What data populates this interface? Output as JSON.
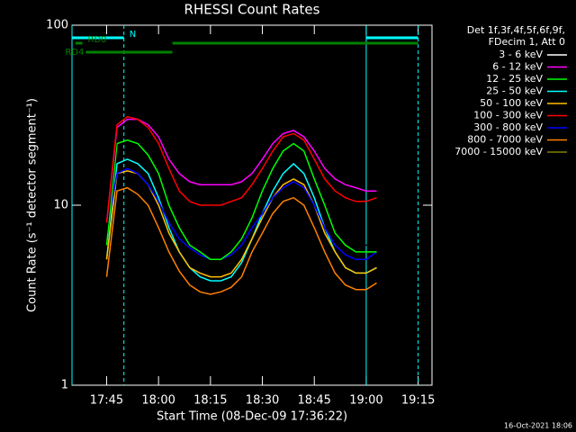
{
  "chart_data": {
    "type": "line",
    "title": "RHESSI Count Rates",
    "y_label": "Count Rate (s⁻¹ detector segment⁻¹)",
    "x_label": "Start Time (08-Dec-09 17:36:22)",
    "legend_header": [
      "Det 1f,3f,4f,5f,6f,9f,",
      "FDecim 1, Att 0"
    ],
    "footer": "16-Oct-2021 18:06",
    "log_y": true,
    "legend": "outside-right",
    "xlim": [
      "17:35",
      "19:19"
    ],
    "xticks": [
      "17:45",
      "18:00",
      "18:15",
      "18:30",
      "18:45",
      "19:00",
      "19:15"
    ],
    "ylim": [
      1,
      100
    ],
    "yticks": [
      1,
      10,
      100
    ],
    "x": [
      "17:45",
      "17:48",
      "17:51",
      "17:54",
      "17:57",
      "18:00",
      "18:03",
      "18:06",
      "18:09",
      "18:12",
      "18:15",
      "18:18",
      "18:21",
      "18:24",
      "18:27",
      "18:30",
      "18:33",
      "18:36",
      "18:39",
      "18:42",
      "18:45",
      "18:48",
      "18:51",
      "18:54",
      "18:57",
      "19:00",
      "19:03"
    ],
    "series": [
      {
        "name": "3 - 6 keV",
        "color": "#000000",
        "values": [
          7,
          25,
          26,
          25,
          21,
          17,
          12,
          9,
          7,
          6,
          5.5,
          5.5,
          6,
          7,
          9,
          13,
          18,
          22,
          23,
          21,
          16,
          11,
          8,
          6.5,
          6,
          6,
          6
        ]
      },
      {
        "name": "6 - 12 keV",
        "color": "#ff00ff",
        "values": [
          8,
          27,
          30,
          30,
          28,
          24,
          18,
          15,
          13.5,
          13,
          13,
          13,
          13,
          13.5,
          15,
          18,
          22,
          25,
          26,
          24,
          20,
          16,
          14,
          13,
          12.5,
          12,
          12
        ]
      },
      {
        "name": "12 - 25 keV",
        "color": "#00ff00",
        "values": [
          6,
          22,
          23,
          22,
          19,
          15,
          10,
          7.5,
          6,
          5.5,
          5,
          5,
          5.5,
          6.5,
          8.5,
          12,
          16,
          20,
          22,
          20,
          14,
          10,
          7,
          6,
          5.5,
          5.5,
          5.5
        ]
      },
      {
        "name": "25 - 50 keV",
        "color": "#00ffff",
        "values": [
          5,
          17,
          18,
          17,
          15,
          11,
          7.5,
          5.5,
          4.5,
          4,
          3.8,
          3.8,
          4,
          4.8,
          6.5,
          9,
          12,
          15,
          17,
          15,
          11,
          7.5,
          5.5,
          4.5,
          4.2,
          4.2,
          4.5
        ]
      },
      {
        "name": "50 - 100 keV",
        "color": "#ffc000",
        "values": [
          5,
          15,
          15.5,
          15,
          13,
          10,
          7,
          5.5,
          4.5,
          4.2,
          4,
          4,
          4.2,
          5,
          6.5,
          8.5,
          11,
          13,
          14,
          13,
          10,
          7,
          5.5,
          4.5,
          4.2,
          4.2,
          4.5
        ]
      },
      {
        "name": "100 - 300 keV",
        "color": "#ff0000",
        "values": [
          8,
          28,
          31,
          30,
          27,
          22,
          16,
          12,
          10.5,
          10,
          10,
          10,
          10.5,
          11,
          13,
          16,
          20,
          24,
          25,
          23,
          18,
          14,
          12,
          11,
          10.5,
          10.5,
          11
        ]
      },
      {
        "name": "300 - 800 keV",
        "color": "#0000ff",
        "values": [
          7,
          15,
          16,
          15,
          13,
          10.5,
          8,
          6.5,
          5.8,
          5.3,
          5,
          5,
          5.3,
          6,
          7.5,
          9,
          11,
          12.5,
          13.5,
          12.5,
          10,
          7.5,
          6,
          5.3,
          5,
          5,
          5.5
        ]
      },
      {
        "name": "800 - 7000 keV",
        "color": "#ff8000",
        "values": [
          4,
          12,
          12.5,
          11.5,
          10,
          7.5,
          5.5,
          4.3,
          3.6,
          3.3,
          3.2,
          3.3,
          3.5,
          4,
          5.5,
          7,
          9,
          10.5,
          11,
          10,
          7.5,
          5.5,
          4.2,
          3.6,
          3.4,
          3.4,
          3.7
        ]
      },
      {
        "name": "7000 - 15000 keV",
        "color": "#808000",
        "values": [
          null,
          null,
          null,
          null,
          null,
          null,
          null,
          null,
          null,
          null,
          null,
          null,
          null,
          null,
          null,
          null,
          null,
          null,
          null,
          null,
          null,
          null,
          null,
          null,
          null,
          null,
          null
        ]
      }
    ],
    "flags": [
      {
        "label": "N",
        "color": "#00ffff",
        "spans": [
          [
            "17:35",
            "17:50"
          ],
          [
            "19:00",
            "19:15"
          ]
        ]
      },
      {
        "label": "RD0",
        "color": "#008000",
        "spans": [
          [
            "17:36",
            "17:38"
          ],
          [
            "18:04",
            "19:15"
          ]
        ]
      },
      {
        "label": "RD4",
        "color": "#008000",
        "spans": [
          [
            "17:39",
            "18:04"
          ]
        ]
      }
    ],
    "vlines": [
      {
        "x": "17:35",
        "color": "#00ffff",
        "dashed": false
      },
      {
        "x": "17:50",
        "color": "#00ffff",
        "dashed": true
      },
      {
        "x": "19:00",
        "color": "#00ffff",
        "dashed": false
      },
      {
        "x": "19:15",
        "color": "#00ffff",
        "dashed": true
      }
    ]
  }
}
